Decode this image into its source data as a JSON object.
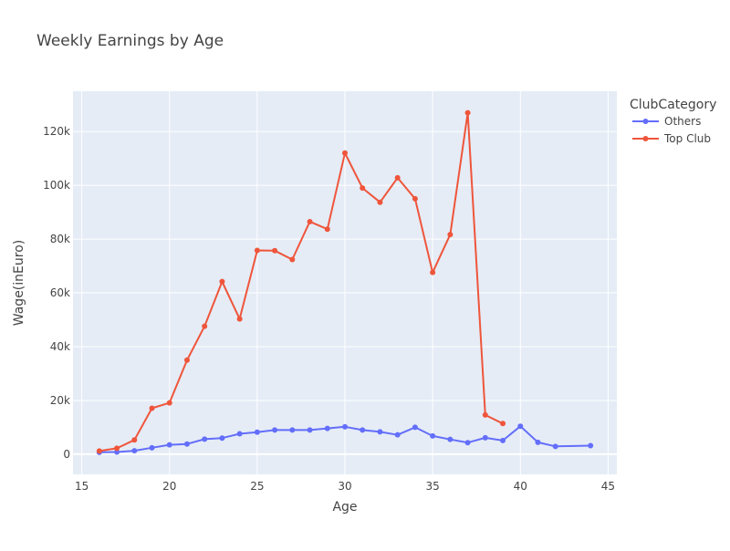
{
  "chart_data": {
    "type": "line",
    "title": "Weekly Earnings by Age",
    "xlabel": "Age",
    "ylabel": "Wage(inEuro)",
    "xlim": [
      14.5,
      45.5
    ],
    "ylim": [
      -7500,
      135000
    ],
    "x_ticks": [
      15,
      20,
      25,
      30,
      35,
      40,
      45
    ],
    "x_tick_labels": [
      "15",
      "20",
      "25",
      "30",
      "35",
      "40",
      "45"
    ],
    "y_ticks": [
      0,
      20000,
      40000,
      60000,
      80000,
      100000,
      120000
    ],
    "y_tick_labels": [
      "0",
      "20k",
      "40k",
      "60k",
      "80k",
      "100k",
      "120k"
    ],
    "grid": true,
    "legend": {
      "title": "ClubCategory",
      "position": "right"
    },
    "series": [
      {
        "name": "Others",
        "color": "#636efa",
        "x": [
          16,
          17,
          18,
          19,
          20,
          21,
          22,
          23,
          24,
          25,
          26,
          27,
          28,
          29,
          30,
          31,
          32,
          33,
          34,
          35,
          36,
          37,
          38,
          39,
          40,
          41,
          42,
          44
        ],
        "y": [
          700,
          800,
          1300,
          2400,
          3500,
          3800,
          5600,
          6000,
          7600,
          8200,
          9000,
          9000,
          9000,
          9600,
          10200,
          9000,
          8300,
          7200,
          10000,
          6800,
          5500,
          4300,
          6100,
          5100,
          10400,
          4400,
          2900,
          3200
        ]
      },
      {
        "name": "Top Club",
        "color": "#ef553b",
        "x": [
          16,
          17,
          18,
          19,
          20,
          21,
          22,
          23,
          24,
          25,
          26,
          27,
          28,
          29,
          30,
          31,
          32,
          33,
          34,
          35,
          36,
          37,
          38,
          39
        ],
        "y": [
          1200,
          2200,
          5300,
          17100,
          19100,
          35000,
          47600,
          64200,
          50300,
          75800,
          75700,
          72400,
          86500,
          83700,
          112000,
          99000,
          93700,
          102800,
          95000,
          67600,
          81700,
          127000,
          14600,
          11400
        ]
      }
    ]
  }
}
